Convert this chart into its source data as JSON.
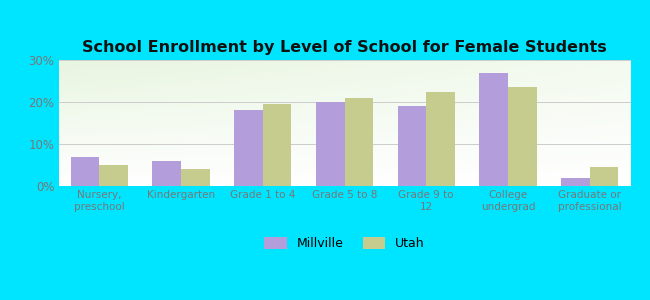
{
  "title": "School Enrollment by Level of School for Female Students",
  "categories": [
    "Nursery,\npreschool",
    "Kindergarten",
    "Grade 1 to 4",
    "Grade 5 to 8",
    "Grade 9 to\n12",
    "College\nundergrad",
    "Graduate or\nprofessional"
  ],
  "millville_values": [
    7.0,
    6.0,
    18.0,
    20.0,
    19.0,
    27.0,
    2.0
  ],
  "utah_values": [
    5.0,
    4.0,
    19.5,
    21.0,
    22.5,
    23.5,
    4.5
  ],
  "millville_color": "#b39ddb",
  "utah_color": "#c5cc8e",
  "background_color": "#00e5ff",
  "gradient_colors": [
    "#e8f5e0",
    "#f5faf0",
    "#ffffff"
  ],
  "ylim": [
    0,
    30
  ],
  "yticks": [
    0,
    10,
    20,
    30
  ],
  "yticklabels": [
    "0%",
    "10%",
    "20%",
    "30%"
  ],
  "legend_labels": [
    "Millville",
    "Utah"
  ],
  "grid_color": "#cccccc",
  "bar_width": 0.35,
  "title_color": "#111111",
  "tick_color": "#777777"
}
